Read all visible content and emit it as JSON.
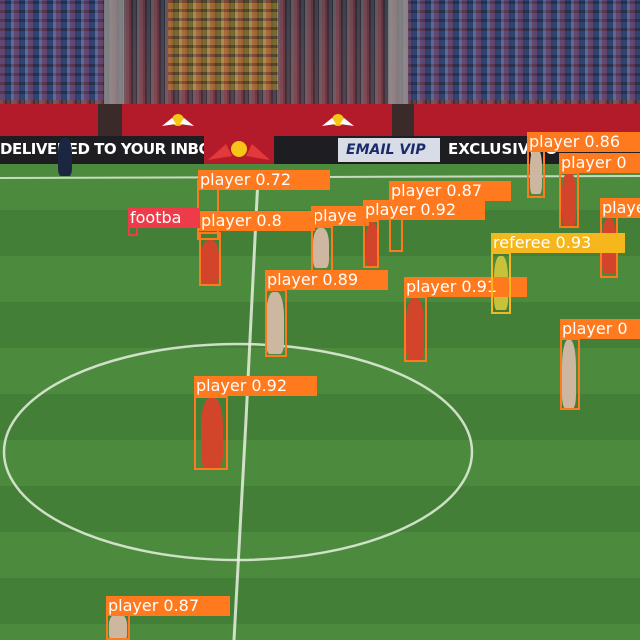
{
  "boards": {
    "left_text": "DELIVERED TO YOUR INBOX",
    "email_text": "EMAIL VIP",
    "right_text": "EXCLUSIVE O"
  },
  "colors": {
    "player_box": "#ff7a1f",
    "referee_box": "#f5b71c",
    "football_box": "#ee3b4a",
    "label_text": "#ffffff"
  },
  "detections": [
    {
      "label": "player 0.72",
      "class": "player"
    },
    {
      "label": "player 0.87",
      "class": "player"
    },
    {
      "label": "player 0.86",
      "class": "player"
    },
    {
      "label": "player 0",
      "class": "player"
    },
    {
      "label": "playe",
      "class": "player"
    },
    {
      "label": "player 0.8",
      "class": "player"
    },
    {
      "label": "player 0.92",
      "class": "player"
    },
    {
      "label": "player",
      "class": "player"
    },
    {
      "label": "player 0.89",
      "class": "player"
    },
    {
      "label": "player 0.91",
      "class": "player"
    },
    {
      "label": "player 0",
      "class": "player"
    },
    {
      "label": "player 0.92",
      "class": "player"
    },
    {
      "label": "player 0.87",
      "class": "player"
    },
    {
      "label": "playe",
      "class": "player"
    },
    {
      "label": "referee 0.93",
      "class": "referee"
    },
    {
      "label": "footba",
      "class": "football"
    }
  ]
}
